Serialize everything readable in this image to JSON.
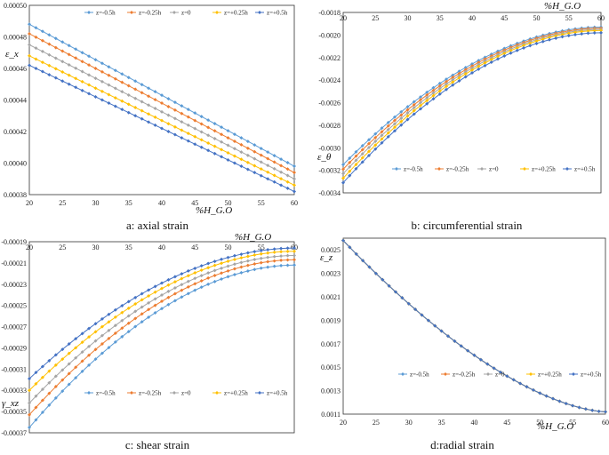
{
  "figure_title": "",
  "colors": {
    "z=-0.5h": "#5B9BD5",
    "z=-0.25h": "#ED7D31",
    "z=0": "#A5A5A5",
    "z=+0.25h": "#FFC000",
    "z=+0.5h": "#4472C4"
  },
  "chart_data": [
    {
      "id": "a",
      "type": "line",
      "caption": "a: axial strain",
      "xlabel": "%H_G.O",
      "ylabel": "ε_x",
      "xlim": [
        20,
        60
      ],
      "ylim": [
        0.00038,
        0.0005
      ],
      "xticks": [
        20,
        25,
        30,
        35,
        40,
        45,
        50,
        55,
        60
      ],
      "yticks": [
        0.00038,
        0.0004,
        0.00042,
        0.00044,
        0.00046,
        0.00048,
        0.0005
      ],
      "ytick_labels": [
        "0.00038",
        "0.00040",
        "0.00042",
        "0.00044",
        "0.00046",
        "0.00048",
        "0.00050"
      ],
      "legend_position": "top",
      "series": [
        {
          "name": "z=-0.5h",
          "x0": 20,
          "x1": 60,
          "y0": 0.000488,
          "y1": 0.000398,
          "shape": "linear"
        },
        {
          "name": "z=-0.25h",
          "x0": 20,
          "x1": 60,
          "y0": 0.000482,
          "y1": 0.000394,
          "shape": "linear"
        },
        {
          "name": "z=0",
          "x0": 20,
          "x1": 60,
          "y0": 0.000475,
          "y1": 0.00039,
          "shape": "linear"
        },
        {
          "name": "z=+0.25h",
          "x0": 20,
          "x1": 60,
          "y0": 0.000468,
          "y1": 0.000386,
          "shape": "linear"
        },
        {
          "name": "z=+0.5h",
          "x0": 20,
          "x1": 60,
          "y0": 0.000462,
          "y1": 0.000382,
          "shape": "linear"
        }
      ]
    },
    {
      "id": "b",
      "type": "line",
      "caption": "b: circumferential strain",
      "xlabel": "%H_G.O",
      "ylabel": "ε_θ",
      "xlim": [
        20,
        60
      ],
      "ylim": [
        -0.0034,
        -0.0018
      ],
      "xticks": [
        20,
        25,
        30,
        35,
        40,
        45,
        50,
        55,
        60
      ],
      "yticks": [
        -0.0034,
        -0.0032,
        -0.003,
        -0.0028,
        -0.0026,
        -0.0024,
        -0.0022,
        -0.002,
        -0.0018
      ],
      "ytick_labels": [
        "-0.0034",
        "-0.0032",
        "-0.0030",
        "-0.0028",
        "-0.0026",
        "-0.0024",
        "-0.0022",
        "-0.0020",
        "-0.0018"
      ],
      "x_axis_position": "top",
      "legend_position": "bottom",
      "series": [
        {
          "name": "z=-0.5h",
          "x0": 20,
          "x1": 60,
          "y0": -0.00315,
          "y1": -0.00193,
          "shape": "concave"
        },
        {
          "name": "z=-0.25h",
          "x0": 20,
          "x1": 60,
          "y0": -0.00319,
          "y1": -0.00194,
          "shape": "concave"
        },
        {
          "name": "z=0",
          "x0": 20,
          "x1": 60,
          "y0": -0.00323,
          "y1": -0.00195,
          "shape": "concave"
        },
        {
          "name": "z=+0.25h",
          "x0": 20,
          "x1": 60,
          "y0": -0.00327,
          "y1": -0.00196,
          "shape": "concave"
        },
        {
          "name": "z=+0.5h",
          "x0": 20,
          "x1": 60,
          "y0": -0.00331,
          "y1": -0.00198,
          "shape": "concave"
        }
      ]
    },
    {
      "id": "c",
      "type": "line",
      "caption": "c: shear strain",
      "xlabel": "%H_G.O",
      "ylabel": "γ_xz",
      "xlim": [
        20,
        60
      ],
      "ylim": [
        -0.00037,
        -0.00019
      ],
      "xticks": [
        20,
        25,
        30,
        35,
        40,
        45,
        50,
        55,
        60
      ],
      "yticks": [
        -0.00037,
        -0.00035,
        -0.00033,
        -0.00031,
        -0.00029,
        -0.00027,
        -0.00025,
        -0.00023,
        -0.00021,
        -0.00019
      ],
      "ytick_labels": [
        "-0.00037",
        "-0.00035",
        "-0.00033",
        "-0.00031",
        "-0.00029",
        "-0.00027",
        "-0.00025",
        "-0.00023",
        "-0.00021",
        "-0.00019"
      ],
      "x_axis_position": "top",
      "legend_position": "bottom",
      "series": [
        {
          "name": "z=-0.5h",
          "x0": 20,
          "x1": 60,
          "y0": -0.000365,
          "y1": -0.000212,
          "shape": "concave"
        },
        {
          "name": "z=-0.25h",
          "x0": 20,
          "x1": 60,
          "y0": -0.000353,
          "y1": -0.000207,
          "shape": "concave"
        },
        {
          "name": "z=0",
          "x0": 20,
          "x1": 60,
          "y0": -0.000342,
          "y1": -0.000203,
          "shape": "concave"
        },
        {
          "name": "z=+0.25h",
          "x0": 20,
          "x1": 60,
          "y0": -0.00033,
          "y1": -0.000199,
          "shape": "concave"
        },
        {
          "name": "z=+0.5h",
          "x0": 20,
          "x1": 60,
          "y0": -0.000319,
          "y1": -0.000196,
          "shape": "concave"
        }
      ]
    },
    {
      "id": "d",
      "type": "line",
      "caption": "d:radial strain",
      "xlabel": "%H_G.O",
      "ylabel": "ε_z",
      "xlim": [
        20,
        60
      ],
      "ylim": [
        0.0011,
        0.0026
      ],
      "xticks": [
        20,
        25,
        30,
        35,
        40,
        45,
        50,
        55,
        60
      ],
      "yticks": [
        0.0011,
        0.0013,
        0.0015,
        0.0017,
        0.0019,
        0.0021,
        0.0023,
        0.0025
      ],
      "ytick_labels": [
        "0.0011",
        "0.0013",
        "0.0015",
        "0.0017",
        "0.0019",
        "0.0021",
        "0.0023",
        "0.0025"
      ],
      "legend_position": "bottom",
      "series": [
        {
          "name": "z=-0.5h",
          "x0": 20,
          "x1": 60,
          "y0": 0.00258,
          "y1": 0.00112,
          "shape": "convex"
        },
        {
          "name": "z=-0.25h",
          "x0": 20,
          "x1": 60,
          "y0": 0.00258,
          "y1": 0.00112,
          "shape": "convex"
        },
        {
          "name": "z=0",
          "x0": 20,
          "x1": 60,
          "y0": 0.00258,
          "y1": 0.00112,
          "shape": "convex"
        },
        {
          "name": "z=+0.25h",
          "x0": 20,
          "x1": 60,
          "y0": 0.00258,
          "y1": 0.00112,
          "shape": "convex"
        },
        {
          "name": "z=+0.5h",
          "x0": 20,
          "x1": 60,
          "y0": 0.00258,
          "y1": 0.00112,
          "shape": "convex"
        }
      ]
    }
  ]
}
